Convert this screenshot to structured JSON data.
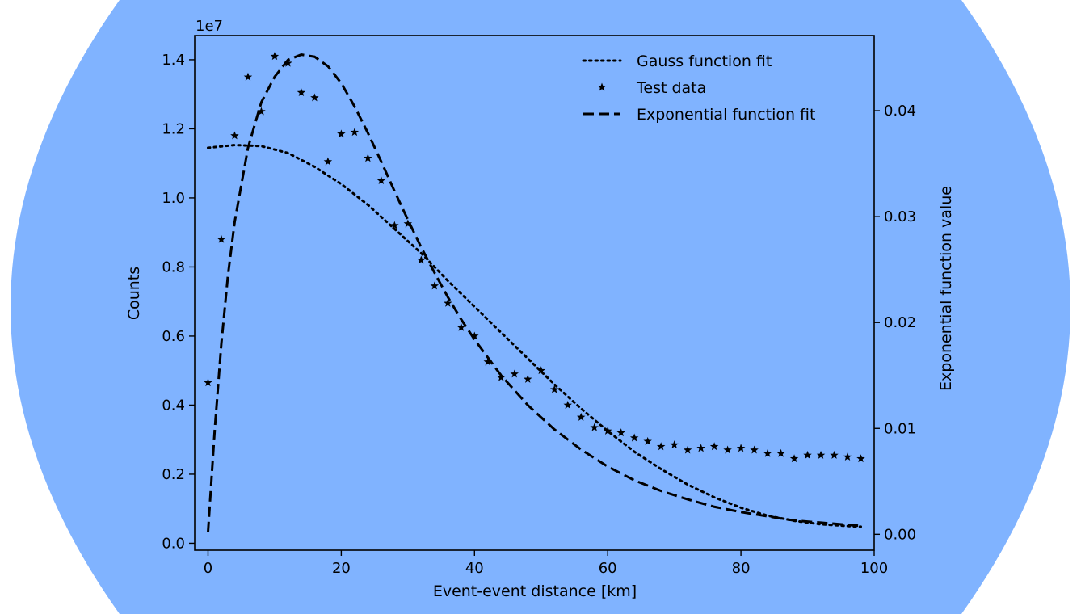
{
  "chart_data": {
    "type": "scatter",
    "title": "",
    "xlabel": "Event-event distance [km]",
    "ylabel": "Counts",
    "y2label": "Exponential function value",
    "y_offset_text": "1e7",
    "xlim": [
      -2,
      100
    ],
    "ylim": [
      -0.02,
      1.47
    ],
    "y2lim": [
      -0.0015,
      0.0471
    ],
    "x_ticks": [
      0,
      20,
      40,
      60,
      80,
      100
    ],
    "y_ticks": [
      0.0,
      0.2,
      0.4,
      0.6,
      0.8,
      1.0,
      1.2,
      1.4
    ],
    "y_tick_labels": [
      "0.0",
      "0.2",
      "0.4",
      "0.6",
      "0.8",
      "1.0",
      "1.2",
      "1.4"
    ],
    "y2_ticks": [
      0.0,
      0.01,
      0.02,
      0.03,
      0.04
    ],
    "y2_tick_labels": [
      "0.00",
      "0.01",
      "0.02",
      "0.03",
      "0.04"
    ],
    "grid": false,
    "legend_position": "top-right",
    "background_color": "#80b3ff",
    "series": [
      {
        "name": "Gauss function fit",
        "kind": "line",
        "style": "dotted",
        "axis": "left",
        "x": [
          0,
          4,
          8,
          12,
          16,
          20,
          24,
          28,
          32,
          36,
          40,
          44,
          48,
          52,
          56,
          60,
          64,
          68,
          72,
          76,
          80,
          84,
          88,
          92,
          96,
          98
        ],
        "y": [
          1.145,
          1.153,
          1.15,
          1.13,
          1.09,
          1.04,
          0.98,
          0.91,
          0.84,
          0.76,
          0.685,
          0.61,
          0.535,
          0.46,
          0.39,
          0.325,
          0.265,
          0.215,
          0.17,
          0.133,
          0.103,
          0.08,
          0.065,
          0.055,
          0.05,
          0.048
        ]
      },
      {
        "name": "Test data",
        "kind": "scatter",
        "marker": "star",
        "axis": "left",
        "x": [
          0,
          2,
          4,
          6,
          8,
          10,
          12,
          14,
          16,
          18,
          20,
          22,
          24,
          26,
          28,
          30,
          32,
          34,
          36,
          38,
          40,
          42,
          44,
          46,
          48,
          50,
          52,
          54,
          56,
          58,
          60,
          62,
          64,
          66,
          68,
          70,
          72,
          74,
          76,
          78,
          80,
          82,
          84,
          86,
          88,
          90,
          92,
          94,
          96,
          98
        ],
        "y": [
          0.465,
          0.88,
          1.18,
          1.35,
          1.25,
          1.41,
          1.39,
          1.305,
          1.29,
          1.105,
          1.185,
          1.19,
          1.115,
          1.05,
          0.92,
          0.925,
          0.82,
          0.745,
          0.695,
          0.625,
          0.6,
          0.525,
          0.48,
          0.49,
          0.475,
          0.5,
          0.445,
          0.4,
          0.365,
          0.335,
          0.325,
          0.32,
          0.305,
          0.295,
          0.28,
          0.285,
          0.27,
          0.275,
          0.28,
          0.27,
          0.275,
          0.27,
          0.26,
          0.26,
          0.245,
          0.255,
          0.255,
          0.255,
          0.25,
          0.245
        ]
      },
      {
        "name": "Exponential function fit",
        "kind": "line",
        "style": "dashed",
        "axis": "right",
        "x": [
          0,
          1,
          2,
          3,
          4,
          6,
          8,
          10,
          12,
          14,
          16,
          18,
          20,
          22,
          24,
          26,
          28,
          30,
          32,
          34,
          36,
          38,
          40,
          44,
          48,
          52,
          56,
          60,
          64,
          68,
          72,
          76,
          80,
          84,
          88,
          92,
          96,
          98
        ],
        "y": [
          0.0002,
          0.0098,
          0.018,
          0.0245,
          0.0295,
          0.0365,
          0.0408,
          0.0432,
          0.0448,
          0.0453,
          0.0451,
          0.0442,
          0.0426,
          0.0404,
          0.0379,
          0.0352,
          0.0324,
          0.0297,
          0.0271,
          0.0247,
          0.0224,
          0.0203,
          0.0184,
          0.015,
          0.0122,
          0.0099,
          0.008,
          0.0064,
          0.0051,
          0.0041,
          0.0033,
          0.0026,
          0.0021,
          0.0017,
          0.0013,
          0.0011,
          0.0009,
          0.0008
        ]
      }
    ]
  }
}
